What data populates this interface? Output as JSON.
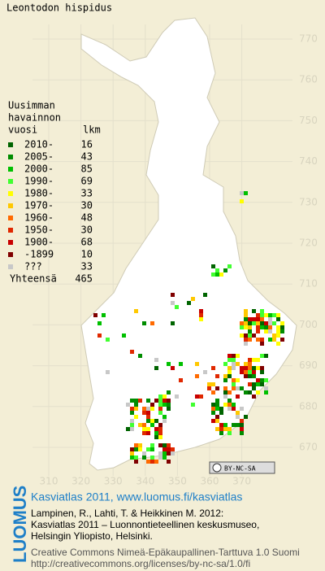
{
  "title": "Leontodon hispidus",
  "y_labels": [
    770,
    760,
    750,
    740,
    730,
    720,
    710,
    700,
    690,
    680,
    670
  ],
  "x_labels": [
    310,
    320,
    330,
    340,
    350,
    360,
    370
  ],
  "legend": {
    "heading": [
      "Uusimman",
      "havainnon"
    ],
    "col_year": "vuosi",
    "col_count": "lkm",
    "items": [
      {
        "label": "2010-",
        "count": 16,
        "color": "#006400"
      },
      {
        "label": "2005-",
        "count": 43,
        "color": "#008c00"
      },
      {
        "label": "2000-",
        "count": 85,
        "color": "#00c000"
      },
      {
        "label": "1990-",
        "count": 69,
        "color": "#40ff30"
      },
      {
        "label": "1980-",
        "count": 33,
        "color": "#ffff00"
      },
      {
        "label": "1970-",
        "count": 30,
        "color": "#ffc800"
      },
      {
        "label": "1960-",
        "count": 48,
        "color": "#ff6a00"
      },
      {
        "label": "1950-",
        "count": 30,
        "color": "#e02800"
      },
      {
        "label": "1900-",
        "count": 68,
        "color": "#c80000"
      },
      {
        "label": "-1899",
        "count": 10,
        "color": "#800000"
      },
      {
        "label": "???",
        "count": 33,
        "color": "#c8c8c8"
      }
    ],
    "total_label": "Yhteensä",
    "total": 465
  },
  "license_badge": "BY-NC-SA",
  "footer": {
    "brand": "LUOMUS",
    "link": "Kasviatlas 2011, www.luomus.fi/kasviatlas",
    "citation": [
      "Lampinen, R., Lahti, T. & Heikkinen M. 2012:",
      "Kasviatlas 2011 – Luonnontieteellinen keskusmuseo,",
      "Helsingin Yliopisto, Helsinki."
    ],
    "license": [
      "Creative Commons Nimeä-Epäkaupallinen-Tarttuva 1.0 Suomi",
      "http://creativecommons.org/licenses/by-nc-sa/1.0/fi"
    ]
  }
}
